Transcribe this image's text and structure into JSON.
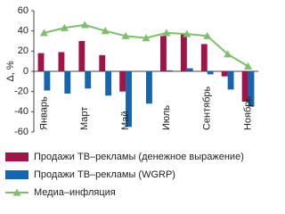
{
  "chart_data": {
    "type": "bar-line",
    "y_label": "Δ, %",
    "categories": [
      "Январь",
      null,
      "Март",
      null,
      "Май",
      null,
      "Июль",
      null,
      "Сентябрь",
      null,
      "Ноябрь"
    ],
    "ylim": [
      -60,
      60
    ],
    "yticks": [
      -60,
      -40,
      -20,
      0,
      20,
      40,
      60
    ],
    "series": [
      {
        "name": "Продажи ТВ–рекламы (денежное выражение)",
        "type": "bar",
        "color": "#a0144a",
        "values": [
          18,
          19,
          30,
          16,
          -20,
          0,
          35,
          37,
          27,
          -5,
          -30
        ]
      },
      {
        "name": "Продажи ТВ–рекламы (WGRP)",
        "type": "bar",
        "color": "#1565b0",
        "values": [
          -19,
          -22,
          -17,
          -24,
          -55,
          -32,
          1,
          3,
          -3,
          -18,
          -35
        ]
      },
      {
        "name": "Медиа–инфляция",
        "type": "line",
        "color": "#7cc06a",
        "values": [
          38,
          43,
          46,
          40,
          35,
          33,
          38,
          37,
          35,
          17,
          5
        ]
      }
    ]
  }
}
